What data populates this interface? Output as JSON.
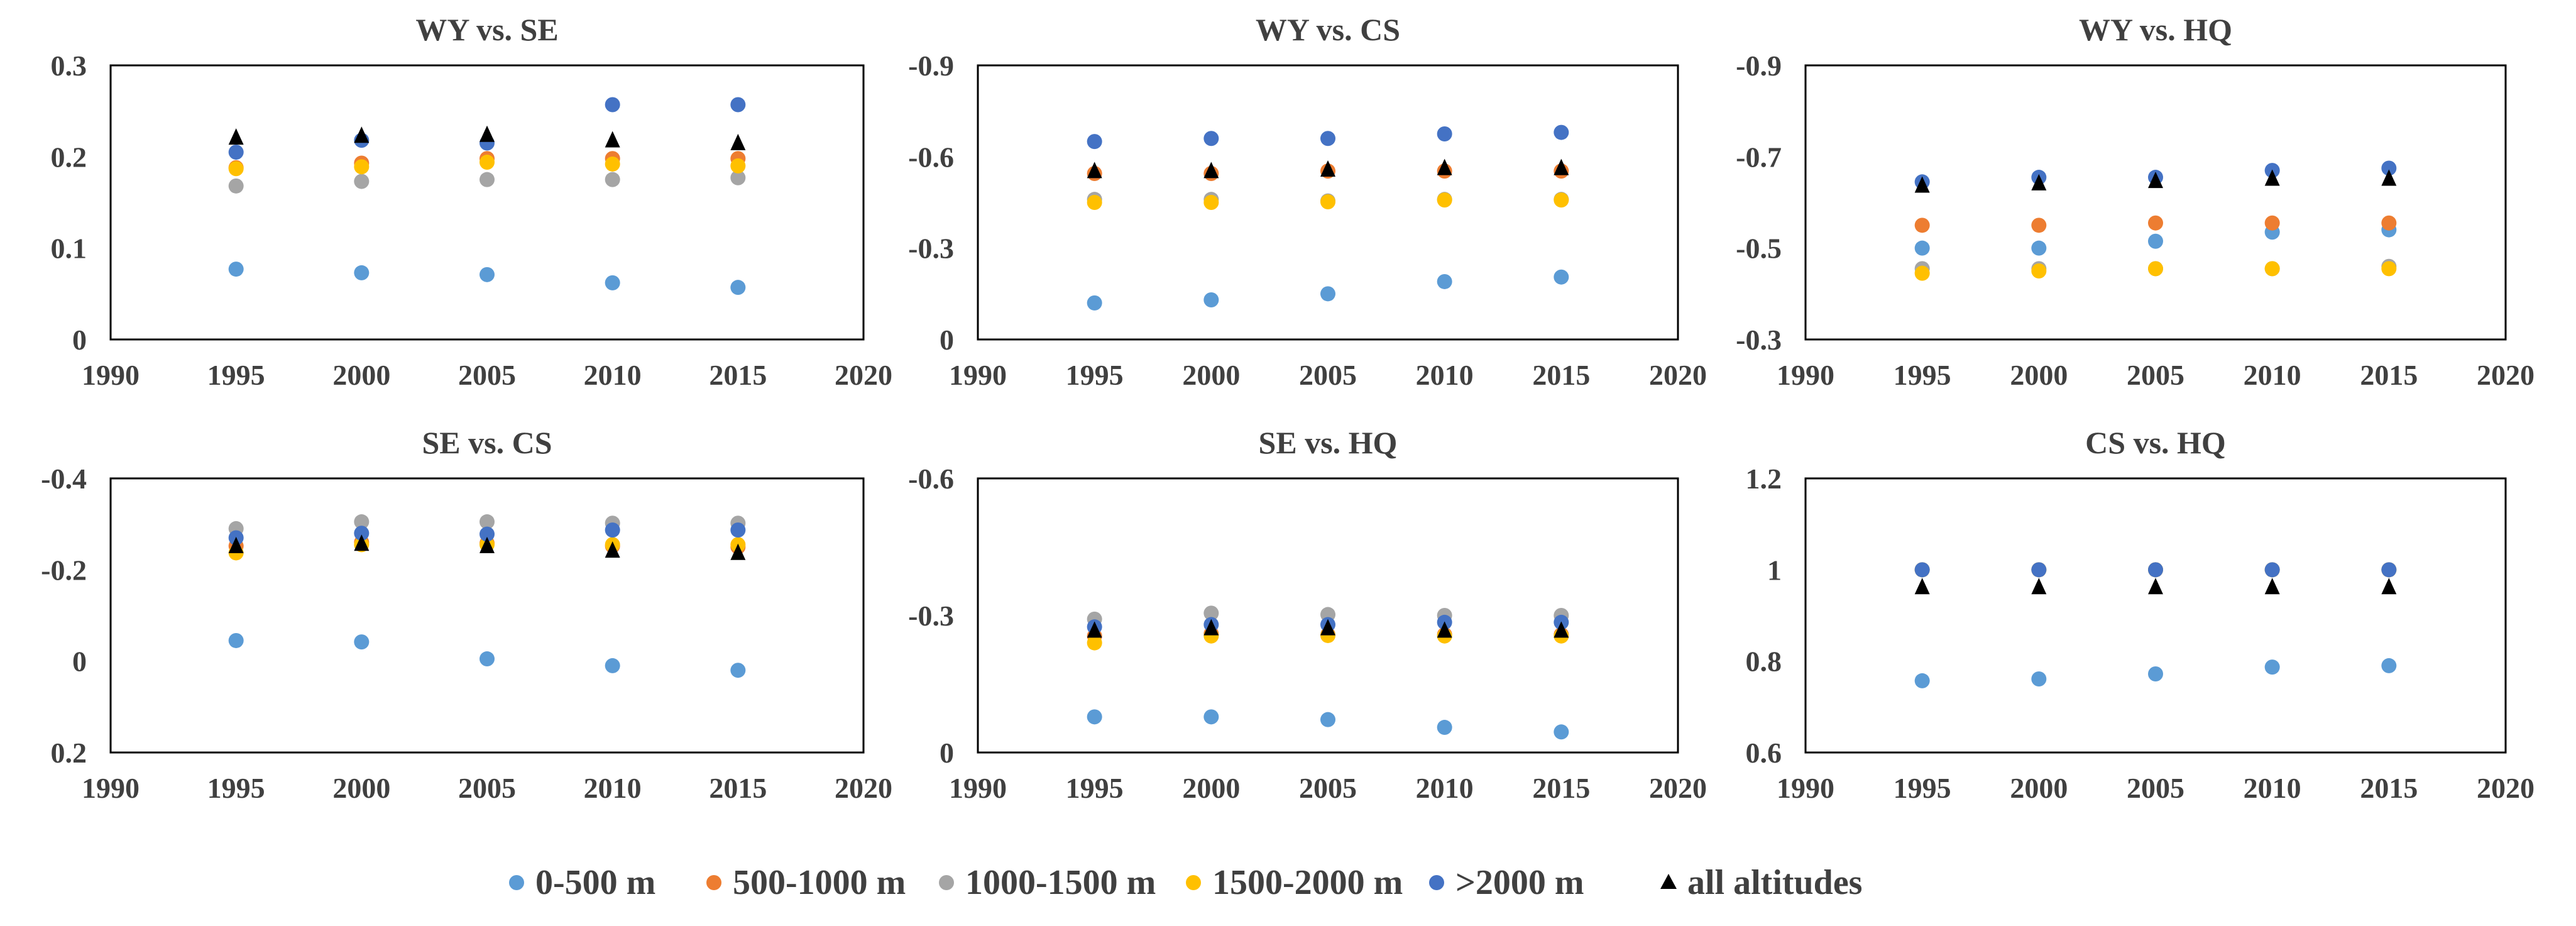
{
  "legend": [
    {
      "key": "s0",
      "label": "0-500 m",
      "color": "#5b9bd5",
      "marker": "circle"
    },
    {
      "key": "s1",
      "label": "500-1000 m",
      "color": "#ed7d31",
      "marker": "circle"
    },
    {
      "key": "s2",
      "label": "1000-1500 m",
      "color": "#a5a5a5",
      "marker": "circle"
    },
    {
      "key": "s3",
      "label": "1500-2000 m",
      "color": "#ffc000",
      "marker": "circle"
    },
    {
      "key": "s4",
      "label": ">2000 m",
      "color": "#4472c4",
      "marker": "circle"
    },
    {
      "key": "s5",
      "label": "all altitudes",
      "color": "#000000",
      "marker": "triangle"
    }
  ],
  "chart_data": [
    {
      "type": "scatter",
      "title": "WY vs. SE",
      "x": [
        1995,
        2000,
        2005,
        2010,
        2015
      ],
      "xlim": [
        1990,
        2020
      ],
      "xticks": [
        1990,
        1995,
        2000,
        2005,
        2010,
        2015,
        2020
      ],
      "xtick_labels": [
        "1990",
        "1995",
        "2000",
        "2005",
        "2010",
        "2015",
        "2020"
      ],
      "ylim": [
        0,
        0.3
      ],
      "y_reversed": false,
      "yticks": [
        0,
        0.1,
        0.2,
        0.3
      ],
      "ytick_labels": [
        "0",
        "0.1",
        "0.2",
        "0.3"
      ],
      "series": [
        {
          "name": "0-500 m",
          "values": [
            0.077,
            0.073,
            0.071,
            0.062,
            0.057
          ]
        },
        {
          "name": "500-1000 m",
          "values": [
            0.188,
            0.193,
            0.198,
            0.198,
            0.198
          ]
        },
        {
          "name": "1000-1500 m",
          "values": [
            0.168,
            0.173,
            0.175,
            0.175,
            0.177
          ]
        },
        {
          "name": "1500-2000 m",
          "values": [
            0.187,
            0.189,
            0.194,
            0.192,
            0.19
          ]
        },
        {
          "name": ">2000 m",
          "values": [
            0.205,
            0.218,
            0.215,
            0.257,
            0.257
          ]
        },
        {
          "name": "all altitudes",
          "values": [
            0.22,
            0.222,
            0.223,
            0.217,
            0.214
          ]
        }
      ]
    },
    {
      "type": "scatter",
      "title": "WY vs. CS",
      "x": [
        1995,
        2000,
        2005,
        2010,
        2015
      ],
      "xlim": [
        1990,
        2020
      ],
      "xticks": [
        1990,
        1995,
        2000,
        2005,
        2010,
        2015,
        2020
      ],
      "xtick_labels": [
        "1990",
        "1995",
        "2000",
        "2005",
        "2010",
        "2015",
        "2020"
      ],
      "ylim": [
        -0.9,
        0
      ],
      "y_reversed": true,
      "yticks": [
        0,
        -0.3,
        -0.6,
        -0.9
      ],
      "ytick_labels": [
        "0",
        "-0.3",
        "-0.6",
        "-0.9"
      ],
      "series": [
        {
          "name": "0-500 m",
          "values": [
            -0.12,
            -0.13,
            -0.15,
            -0.19,
            -0.205
          ]
        },
        {
          "name": "500-1000 m",
          "values": [
            -0.545,
            -0.545,
            -0.553,
            -0.553,
            -0.553
          ]
        },
        {
          "name": "1000-1500 m",
          "values": [
            -0.46,
            -0.46,
            -0.455,
            -0.46,
            -0.46
          ]
        },
        {
          "name": "1500-2000 m",
          "values": [
            -0.45,
            -0.45,
            -0.452,
            -0.458,
            -0.458
          ]
        },
        {
          "name": ">2000 m",
          "values": [
            -0.65,
            -0.66,
            -0.66,
            -0.675,
            -0.68
          ]
        },
        {
          "name": "all altitudes",
          "values": [
            -0.55,
            -0.55,
            -0.555,
            -0.56,
            -0.56
          ]
        }
      ]
    },
    {
      "type": "scatter",
      "title": "WY vs. HQ",
      "x": [
        1995,
        2000,
        2005,
        2010,
        2015
      ],
      "xlim": [
        1990,
        2020
      ],
      "xticks": [
        1990,
        1995,
        2000,
        2005,
        2010,
        2015,
        2020
      ],
      "xtick_labels": [
        "1990",
        "1995",
        "2000",
        "2005",
        "2010",
        "2015",
        "2020"
      ],
      "ylim": [
        -0.9,
        -0.3
      ],
      "y_reversed": true,
      "yticks": [
        -0.3,
        -0.5,
        -0.7,
        -0.9
      ],
      "ytick_labels": [
        "-0.3",
        "-0.5",
        "-0.7",
        "-0.9"
      ],
      "series": [
        {
          "name": "0-500 m",
          "values": [
            -0.5,
            -0.5,
            -0.515,
            -0.535,
            -0.54
          ]
        },
        {
          "name": "500-1000 m",
          "values": [
            -0.55,
            -0.55,
            -0.555,
            -0.555,
            -0.555
          ]
        },
        {
          "name": "1000-1500 m",
          "values": [
            -0.455,
            -0.455,
            -0.455,
            -0.455,
            -0.46
          ]
        },
        {
          "name": "1500-2000 m",
          "values": [
            -0.445,
            -0.45,
            -0.455,
            -0.455,
            -0.455
          ]
        },
        {
          "name": ">2000 m",
          "values": [
            -0.645,
            -0.655,
            -0.655,
            -0.67,
            -0.675
          ]
        },
        {
          "name": "all altitudes",
          "values": [
            -0.635,
            -0.64,
            -0.645,
            -0.65,
            -0.65
          ]
        }
      ]
    },
    {
      "type": "scatter",
      "title": "SE vs. CS",
      "x": [
        1995,
        2000,
        2005,
        2010,
        2015
      ],
      "xlim": [
        1990,
        2020
      ],
      "xticks": [
        1990,
        1995,
        2000,
        2005,
        2010,
        2015,
        2020
      ],
      "xtick_labels": [
        "1990",
        "1995",
        "2000",
        "2005",
        "2010",
        "2015",
        "2020"
      ],
      "ylim": [
        -0.4,
        0.2
      ],
      "y_reversed": true,
      "yticks": [
        0.2,
        0,
        -0.2,
        -0.4
      ],
      "ytick_labels": [
        "0.2",
        "0",
        "-0.2",
        "-0.4"
      ],
      "series": [
        {
          "name": "0-500 m",
          "values": [
            -0.045,
            -0.042,
            -0.005,
            0.01,
            0.02
          ]
        },
        {
          "name": "500-1000 m",
          "values": [
            -0.252,
            -0.26,
            -0.258,
            -0.252,
            -0.25
          ]
        },
        {
          "name": "1000-1500 m",
          "values": [
            -0.29,
            -0.305,
            -0.305,
            -0.302,
            -0.302
          ]
        },
        {
          "name": "1500-2000 m",
          "values": [
            -0.237,
            -0.255,
            -0.255,
            -0.255,
            -0.255
          ]
        },
        {
          "name": ">2000 m",
          "values": [
            -0.27,
            -0.28,
            -0.278,
            -0.287,
            -0.287
          ]
        },
        {
          "name": "all altitudes",
          "values": [
            -0.25,
            -0.255,
            -0.25,
            -0.24,
            -0.235
          ]
        }
      ]
    },
    {
      "type": "scatter",
      "title": "SE vs. HQ",
      "x": [
        1995,
        2000,
        2005,
        2010,
        2015
      ],
      "xlim": [
        1990,
        2020
      ],
      "xticks": [
        1990,
        1995,
        2000,
        2005,
        2010,
        2015,
        2020
      ],
      "xtick_labels": [
        "1990",
        "1995",
        "2000",
        "2005",
        "2010",
        "2015",
        "2020"
      ],
      "ylim": [
        -0.6,
        0
      ],
      "y_reversed": true,
      "yticks": [
        0,
        -0.3,
        -0.6
      ],
      "ytick_labels": [
        "0",
        "-0.3",
        "-0.6"
      ],
      "series": [
        {
          "name": "0-500 m",
          "values": [
            -0.078,
            -0.078,
            -0.072,
            -0.055,
            -0.045
          ]
        },
        {
          "name": "500-1000 m",
          "values": [
            -0.255,
            -0.26,
            -0.258,
            -0.258,
            -0.258
          ]
        },
        {
          "name": "1000-1500 m",
          "values": [
            -0.292,
            -0.305,
            -0.302,
            -0.3,
            -0.3
          ]
        },
        {
          "name": "1500-2000 m",
          "values": [
            -0.24,
            -0.255,
            -0.256,
            -0.255,
            -0.255
          ]
        },
        {
          "name": ">2000 m",
          "values": [
            -0.275,
            -0.28,
            -0.28,
            -0.285,
            -0.285
          ]
        },
        {
          "name": "all altitudes",
          "values": [
            -0.265,
            -0.27,
            -0.27,
            -0.265,
            -0.265
          ]
        }
      ]
    },
    {
      "type": "scatter",
      "title": "CS vs. HQ",
      "x": [
        1995,
        2000,
        2005,
        2010,
        2015
      ],
      "xlim": [
        1990,
        2020
      ],
      "xticks": [
        1990,
        1995,
        2000,
        2005,
        2010,
        2015,
        2020
      ],
      "xtick_labels": [
        "1990",
        "1995",
        "2000",
        "2005",
        "2010",
        "2015",
        "2020"
      ],
      "ylim": [
        0.6,
        1.2
      ],
      "y_reversed": false,
      "yticks": [
        0.6,
        0.8,
        1,
        1.2
      ],
      "ytick_labels": [
        "0.6",
        "0.8",
        "1",
        "1.2"
      ],
      "series": [
        {
          "name": "0-500 m",
          "values": [
            0.757,
            0.761,
            0.772,
            0.787,
            0.79
          ]
        },
        {
          "name": "500-1000 m",
          "values": [
            1.0,
            1.0,
            1.0,
            1.0,
            1.0
          ]
        },
        {
          "name": "1000-1500 m",
          "values": [
            1.0,
            1.0,
            1.0,
            1.0,
            1.0
          ]
        },
        {
          "name": "1500-2000 m",
          "values": [
            1.0,
            1.0,
            1.0,
            1.0,
            1.0
          ]
        },
        {
          "name": ">2000 m",
          "values": [
            1.0,
            1.0,
            1.0,
            1.0,
            1.0
          ]
        },
        {
          "name": "all altitudes",
          "values": [
            0.96,
            0.96,
            0.96,
            0.96,
            0.96
          ]
        }
      ]
    }
  ]
}
